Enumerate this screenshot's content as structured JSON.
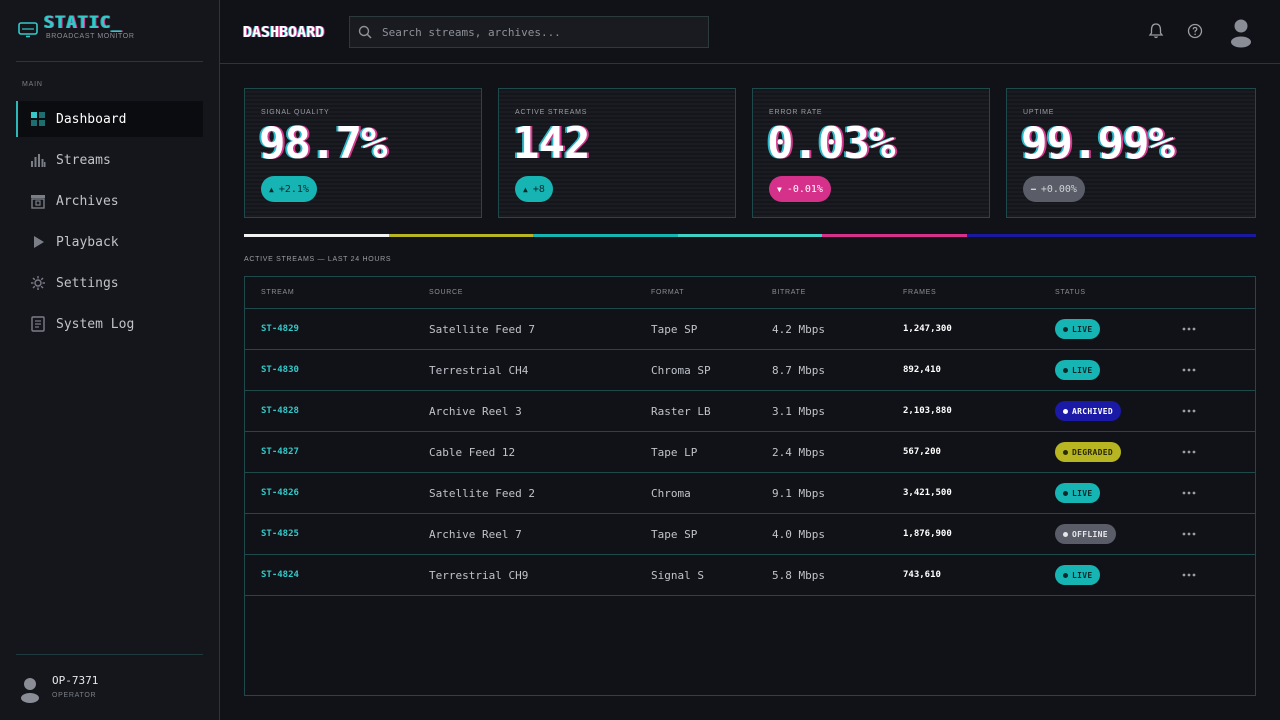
{
  "brand": {
    "name": "STATIC_",
    "subtitle": "BROADCAST MONITOR",
    "icon": "monitor-icon"
  },
  "sidebar": {
    "section": "MAIN",
    "items": [
      {
        "label": "Dashboard",
        "icon": "grid-icon",
        "active": true
      },
      {
        "label": "Streams",
        "icon": "bars-icon",
        "active": false
      },
      {
        "label": "Archives",
        "icon": "archive-icon",
        "active": false
      },
      {
        "label": "Playback",
        "icon": "play-icon",
        "active": false
      },
      {
        "label": "Settings",
        "icon": "gear-icon",
        "active": false
      },
      {
        "label": "System Log",
        "icon": "document-icon",
        "active": false
      }
    ],
    "user": {
      "id": "OP-7371",
      "role": "OPERATOR"
    }
  },
  "header": {
    "title": "DASHBOARD",
    "search_placeholder": "Search streams, archives..."
  },
  "stats": [
    {
      "label": "SIGNAL QUALITY",
      "value": "98.7%",
      "delta": "+2.1%",
      "trend": "up",
      "color": "#17b4b4"
    },
    {
      "label": "ACTIVE STREAMS",
      "value": "142",
      "delta": "+8",
      "trend": "up",
      "color": "#17b4b4"
    },
    {
      "label": "ERROR RATE",
      "value": "0.03%",
      "delta": "-0.01%",
      "trend": "down",
      "color": "#d6318a"
    },
    {
      "label": "UPTIME",
      "value": "99.99%",
      "delta": "+0.00%",
      "trend": "flat",
      "color": "#5a5d68"
    }
  ],
  "strip_colors": [
    "#f2f2f2",
    "#b8b522",
    "#17b4b4",
    "#3fd1c6",
    "#d6318a",
    "#1a1aa0",
    "#1a1aa0"
  ],
  "table": {
    "title": "ACTIVE STREAMS — LAST 24 HOURS",
    "columns": [
      "STREAM",
      "SOURCE",
      "FORMAT",
      "BITRATE",
      "FRAMES",
      "STATUS"
    ],
    "rows": [
      {
        "stream": "ST-4829",
        "source": "Satellite Feed 7",
        "format": "Tape SP",
        "bitrate": "4.2 Mbps",
        "frames": "1,247,300",
        "status": "LIVE"
      },
      {
        "stream": "ST-4830",
        "source": "Terrestrial CH4",
        "format": "Chroma SP",
        "bitrate": "8.7 Mbps",
        "frames": "892,410",
        "status": "LIVE"
      },
      {
        "stream": "ST-4828",
        "source": "Archive Reel 3",
        "format": "Raster LB",
        "bitrate": "3.1 Mbps",
        "frames": "2,103,880",
        "status": "ARCHIVED"
      },
      {
        "stream": "ST-4827",
        "source": "Cable Feed 12",
        "format": "Tape LP",
        "bitrate": "2.4 Mbps",
        "frames": "567,200",
        "status": "DEGRADED"
      },
      {
        "stream": "ST-4826",
        "source": "Satellite Feed 2",
        "format": "Chroma",
        "bitrate": "9.1 Mbps",
        "frames": "3,421,500",
        "status": "LIVE"
      },
      {
        "stream": "ST-4825",
        "source": "Archive Reel 7",
        "format": "Tape SP",
        "bitrate": "4.0 Mbps",
        "frames": "1,876,900",
        "status": "OFFLINE"
      },
      {
        "stream": "ST-4824",
        "source": "Terrestrial CH9",
        "format": "Signal S",
        "bitrate": "5.8 Mbps",
        "frames": "743,610",
        "status": "LIVE"
      }
    ]
  },
  "status_colors": {
    "LIVE": {
      "bg": "#17b4b4",
      "fg": "#0c2a2c",
      "dot": "#0c2a2c"
    },
    "ARCHIVED": {
      "bg": "#1a1aa6",
      "fg": "#ffffff",
      "dot": "#ffffff"
    },
    "DEGRADED": {
      "bg": "#b8b522",
      "fg": "#2a2a08",
      "dot": "#2a2a08"
    },
    "OFFLINE": {
      "bg": "#5a5d68",
      "fg": "#e6e7ea",
      "dot": "#e6e7ea"
    }
  }
}
